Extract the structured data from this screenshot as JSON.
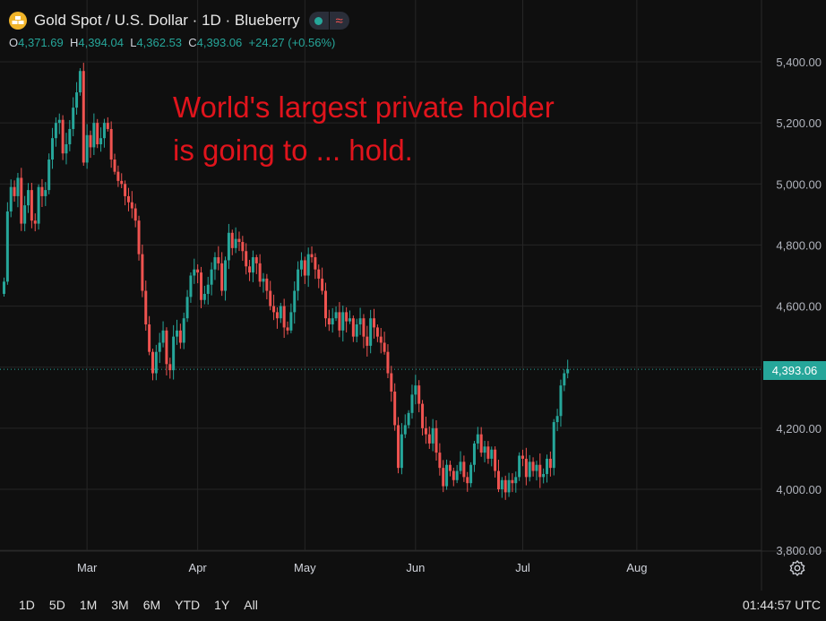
{
  "header": {
    "title": "Gold Spot / U.S. Dollar · 1D · Blueberry",
    "icon": "gold-coin-icon",
    "status_icon": "market-open-dot-icon",
    "wave_icon": "approx-wave-icon"
  },
  "ohlc": {
    "o_label": "O",
    "o_value": "4,371.69",
    "h_label": "H",
    "h_value": "4,394.04",
    "l_label": "L",
    "l_value": "4,362.53",
    "c_label": "C",
    "c_value": "4,393.06",
    "change": "+24.27 (+0.56%)"
  },
  "annotation": {
    "line1": "World's largest private holder",
    "line2": "is going to ... hold.",
    "color": "#e0141c"
  },
  "last_price_label": "4,393.06",
  "range_buttons": [
    "1D",
    "5D",
    "1M",
    "3M",
    "6M",
    "YTD",
    "1Y",
    "All"
  ],
  "clock": "01:44:57 UTC",
  "colors": {
    "up": "#26a69a",
    "down": "#ef5350",
    "background": "#0f0f0f",
    "grid": "#262626"
  },
  "chart_data": {
    "type": "candlestick",
    "title": "Gold Spot / U.S. Dollar",
    "interval": "1D",
    "ylim": [
      3780,
      5540
    ],
    "y_ticks": [
      3800,
      4000,
      4200,
      4400,
      4600,
      4800,
      5000,
      5200,
      5400
    ],
    "y_tick_labels": [
      "3,800.00",
      "4,000.00",
      "4,200.00",
      "4,400.00",
      "4,600.00",
      "4,800.00",
      "5,000.00",
      "5,200.00",
      "5,400.00"
    ],
    "x_ticks": [
      {
        "label": "Mar",
        "index": 24
      },
      {
        "label": "Apr",
        "index": 56
      },
      {
        "label": "May",
        "index": 87
      },
      {
        "label": "Jun",
        "index": 119
      },
      {
        "label": "Jul",
        "index": 150
      },
      {
        "label": "Aug",
        "index": 183
      }
    ],
    "last_price": 4393.06,
    "grid": true,
    "closes": [
      4680,
      4910,
      4990,
      4960,
      5020,
      4870,
      4930,
      4980,
      4880,
      4870,
      4990,
      4960,
      4980,
      5080,
      5150,
      5200,
      5210,
      5100,
      5130,
      5180,
      5250,
      5300,
      5370,
      5070,
      5160,
      5120,
      5200,
      5130,
      5150,
      5200,
      5180,
      5080,
      5040,
      5010,
      5000,
      4960,
      4940,
      4920,
      4880,
      4770,
      4650,
      4540,
      4450,
      4380,
      4450,
      4480,
      4520,
      4410,
      4390,
      4500,
      4520,
      4480,
      4560,
      4630,
      4700,
      4720,
      4710,
      4620,
      4640,
      4670,
      4720,
      4760,
      4740,
      4650,
      4750,
      4840,
      4790,
      4820,
      4810,
      4780,
      4730,
      4710,
      4760,
      4740,
      4680,
      4690,
      4650,
      4600,
      4580,
      4560,
      4600,
      4530,
      4520,
      4580,
      4650,
      4720,
      4750,
      4700,
      4770,
      4760,
      4720,
      4690,
      4650,
      4560,
      4540,
      4560,
      4580,
      4520,
      4580,
      4550,
      4560,
      4500,
      4540,
      4560,
      4500,
      4470,
      4560,
      4530,
      4500,
      4480,
      4450,
      4380,
      4320,
      4210,
      4070,
      4180,
      4210,
      4250,
      4310,
      4340,
      4280,
      4200,
      4180,
      4150,
      4200,
      4120,
      4070,
      4010,
      4080,
      4060,
      4030,
      4060,
      4090,
      4040,
      4020,
      4080,
      4150,
      4180,
      4120,
      4140,
      4100,
      4130,
      4060,
      4000,
      4030,
      3990,
      4030,
      4020,
      4040,
      4110,
      4100,
      4040,
      4090,
      4060,
      4080,
      4040,
      4050,
      4100,
      4070,
      4220,
      4240,
      4340,
      4380,
      4393.06
    ]
  }
}
